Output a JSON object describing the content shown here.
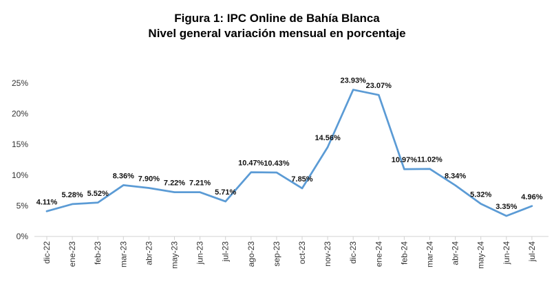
{
  "title_line1": "Figura 1: IPC Online de Bahía Blanca",
  "title_line2": "Nivel general variación mensual en porcentaje",
  "chart_data": {
    "type": "line",
    "title": "Figura 1: IPC Online de Bahía Blanca",
    "subtitle": "Nivel general variación mensual en porcentaje",
    "categories": [
      "dic-22",
      "ene-23",
      "feb-23",
      "mar-23",
      "abr-23",
      "may-23",
      "jun-23",
      "jul-23",
      "ago-23",
      "sep-23",
      "oct-23",
      "nov-23",
      "dic-23",
      "ene-24",
      "feb-24",
      "mar-24",
      "abr-24",
      "may-24",
      "jun-24",
      "jul-24"
    ],
    "series": [
      {
        "values": [
          4.11,
          5.28,
          5.52,
          8.36,
          7.9,
          7.22,
          7.21,
          5.71,
          10.47,
          10.43,
          7.85,
          14.56,
          23.93,
          23.07,
          10.97,
          11.02,
          8.34,
          5.32,
          3.35,
          4.96
        ],
        "labels": [
          "4.11%",
          "5.28%",
          "5.52%",
          "8.36%",
          "7.90%",
          "7.22%",
          "7.21%",
          "5.71%",
          "10.47%",
          "10.43%",
          "7.85%",
          "14.56%",
          "23.93%",
          "23.07%",
          "10.97%",
          "11.02%",
          "8.34%",
          "5.32%",
          "3.35%",
          "4.96%"
        ],
        "color": "#5B9BD5"
      }
    ],
    "ylim": [
      0,
      25
    ],
    "yticks": [
      0,
      5,
      10,
      15,
      20,
      25
    ],
    "ytick_labels": [
      "0%",
      "5%",
      "10%",
      "15%",
      "20%",
      "25%"
    ],
    "xlabel": "",
    "ylabel": "",
    "grid": false,
    "legend": "none"
  }
}
